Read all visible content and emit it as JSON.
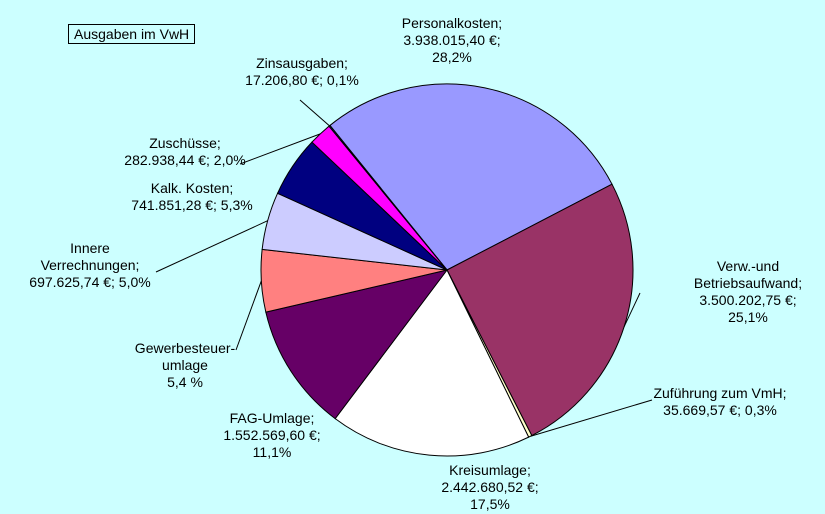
{
  "chart_data": {
    "type": "pie",
    "title": "Ausgaben im VwH",
    "categories": [
      "Personalkosten;",
      "Verw.-und\nBetriebsaufwand;",
      "Zuführung zum VmH;",
      "Kreisumlage;",
      "FAG-Umlage;",
      "Gewerbesteuer-\numlage",
      "Innere\nVerrechnungen;",
      "Kalk. Kosten;",
      "Zuschüsse;",
      "Zinsausgaben;"
    ],
    "values": [
      28.2,
      25.1,
      0.3,
      17.5,
      11.1,
      5.4,
      5.0,
      5.3,
      2.0,
      0.1
    ],
    "value_labels": [
      "3.938.015,40 €;\n28,2%",
      "3.500.202,75 €;\n25,1%",
      "35.669,57 €; 0,3%",
      "2.442.680,52 €;\n17,5%",
      "1.552.569,60 €;\n11,1%",
      "5,4 %",
      "697.625,74 €; 5,0%",
      "741.851,28 €; 5,3%",
      "282.938,44 €; 2,0%",
      "17.206,80 €; 0,1%"
    ],
    "colors": [
      "#9999ff",
      "#993366",
      "#ffffcc",
      "#ffffff",
      "#660066",
      "#ff8080",
      "#ccccff",
      "#000080",
      "#ff00ff",
      "#0066cc"
    ]
  }
}
